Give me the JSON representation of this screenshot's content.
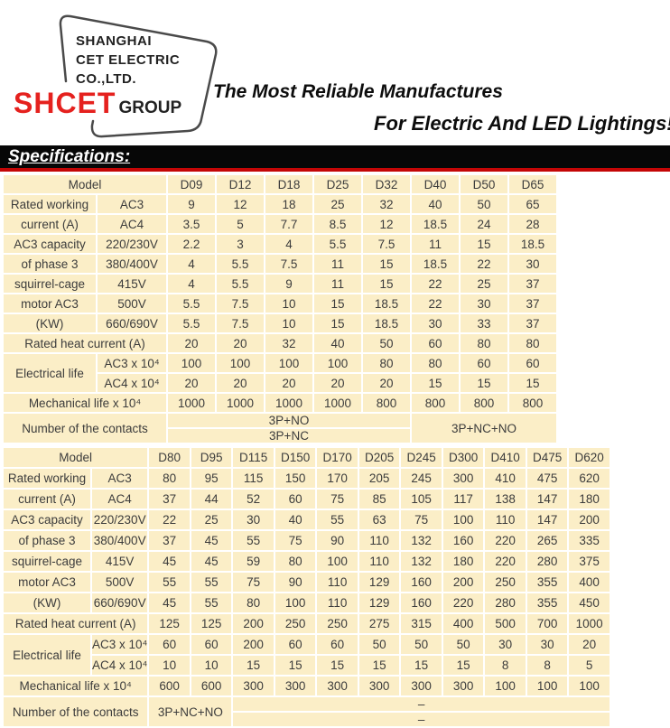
{
  "header": {
    "slogan_line1": "The Most Reliable Manufactures",
    "slogan_line2": "For Electric And LED Lightings!"
  },
  "logo": {
    "company_lines": [
      "SHANGHAI",
      "CET ELECTRIC",
      "CO.,LTD."
    ],
    "brand": "SHCET",
    "brand_suffix": "GROUP"
  },
  "section_title": "Specifications:",
  "colors": {
    "brand_red": "#e5211e",
    "title_bar_black": "#070707",
    "divider_red": "#c40606",
    "cell_cream": "#fbeec7",
    "table_text": "#3c3c3c"
  },
  "table1": {
    "rows": [
      [
        {
          "t": "Model",
          "cs": 2
        },
        "D09",
        "D12",
        "D18",
        "D25",
        "D32",
        "D40",
        "D50",
        "D65"
      ],
      [
        "Rated working",
        "AC3",
        "9",
        "12",
        "18",
        "25",
        "32",
        "40",
        "50",
        "65"
      ],
      [
        "current (A)",
        "AC4",
        "3.5",
        "5",
        "7.7",
        "8.5",
        "12",
        "18.5",
        "24",
        "28"
      ],
      [
        "AC3 capacity",
        "220/230V",
        "2.2",
        "3",
        "4",
        "5.5",
        "7.5",
        "11",
        "15",
        "18.5"
      ],
      [
        "of phase 3",
        "380/400V",
        "4",
        "5.5",
        "7.5",
        "11",
        "15",
        "18.5",
        "22",
        "30"
      ],
      [
        "squirrel-cage",
        "415V",
        "4",
        "5.5",
        "9",
        "11",
        "15",
        "22",
        "25",
        "37"
      ],
      [
        "motor AC3",
        "500V",
        "5.5",
        "7.5",
        "10",
        "15",
        "18.5",
        "22",
        "30",
        "37"
      ],
      [
        "(KW)",
        "660/690V",
        "5.5",
        "7.5",
        "10",
        "15",
        "18.5",
        "30",
        "33",
        "37"
      ],
      [
        {
          "t": "Rated heat current (A)",
          "cs": 2
        },
        "20",
        "20",
        "32",
        "40",
        "50",
        "60",
        "80",
        "80"
      ],
      [
        {
          "t": "Electrical life",
          "rs": 2
        },
        "AC3 x 10⁴",
        "100",
        "100",
        "100",
        "100",
        "80",
        "80",
        "60",
        "60"
      ],
      [
        "AC4 x 10⁴",
        "20",
        "20",
        "20",
        "20",
        "20",
        "15",
        "15",
        "15"
      ],
      [
        {
          "t": "Mechanical life x 10⁴",
          "cs": 2
        },
        "1000",
        "1000",
        "1000",
        "1000",
        "800",
        "800",
        "800",
        "800"
      ],
      [
        {
          "t": "Number of the contacts",
          "cs": 2,
          "rs": 2
        },
        {
          "t": "3P+NO",
          "cs": 5,
          "n": "contacts-value"
        },
        {
          "t": "3P+NC+NO",
          "cs": 3,
          "rs": 2,
          "n": "contacts-value"
        }
      ],
      [
        {
          "t": "3P+NC",
          "cs": 5,
          "n": "contacts-value"
        }
      ]
    ]
  },
  "table2": {
    "rows": [
      [
        {
          "t": "Model",
          "cs": 2
        },
        "D80",
        "D95",
        "D115",
        "D150",
        "D170",
        "D205",
        "D245",
        "D300",
        "D410",
        "D475",
        "D620"
      ],
      [
        "Rated working",
        "AC3",
        "80",
        "95",
        "115",
        "150",
        "170",
        "205",
        "245",
        "300",
        "410",
        "475",
        "620"
      ],
      [
        "current (A)",
        "AC4",
        "37",
        "44",
        "52",
        "60",
        "75",
        "85",
        "105",
        "117",
        "138",
        "147",
        "180"
      ],
      [
        "AC3 capacity",
        "220/230V",
        "22",
        "25",
        "30",
        "40",
        "55",
        "63",
        "75",
        "100",
        "110",
        "147",
        "200"
      ],
      [
        "of phase 3",
        "380/400V",
        "37",
        "45",
        "55",
        "75",
        "90",
        "110",
        "132",
        "160",
        "220",
        "265",
        "335"
      ],
      [
        "squirrel-cage",
        "415V",
        "45",
        "45",
        "59",
        "80",
        "100",
        "110",
        "132",
        "180",
        "220",
        "280",
        "375"
      ],
      [
        "motor AC3",
        "500V",
        "55",
        "55",
        "75",
        "90",
        "110",
        "129",
        "160",
        "200",
        "250",
        "355",
        "400"
      ],
      [
        "(KW)",
        "660/690V",
        "45",
        "55",
        "80",
        "100",
        "110",
        "129",
        "160",
        "220",
        "280",
        "355",
        "450"
      ],
      [
        {
          "t": "Rated heat current (A)",
          "cs": 2
        },
        "125",
        "125",
        "200",
        "250",
        "250",
        "275",
        "315",
        "400",
        "500",
        "700",
        "1000"
      ],
      [
        {
          "t": "Electrical life",
          "rs": 2
        },
        "AC3 x 10⁴",
        "60",
        "60",
        "200",
        "60",
        "60",
        "50",
        "50",
        "50",
        "30",
        "30",
        "20"
      ],
      [
        "AC4 x 10⁴",
        "10",
        "10",
        "15",
        "15",
        "15",
        "15",
        "15",
        "15",
        "8",
        "8",
        "5"
      ],
      [
        {
          "t": "Mechanical life x 10⁴",
          "cs": 2
        },
        "600",
        "600",
        "300",
        "300",
        "300",
        "300",
        "300",
        "300",
        "100",
        "100",
        "100"
      ],
      [
        {
          "t": "Number of the contacts",
          "cs": 2,
          "rs": 2
        },
        {
          "t": "3P+NC+NO",
          "cs": 2,
          "rs": 2,
          "n": "contacts-value"
        },
        {
          "t": "–",
          "cs": 9,
          "n": "contacts-value"
        }
      ],
      [
        {
          "t": "–",
          "cs": 9,
          "n": "contacts-value"
        }
      ]
    ]
  }
}
